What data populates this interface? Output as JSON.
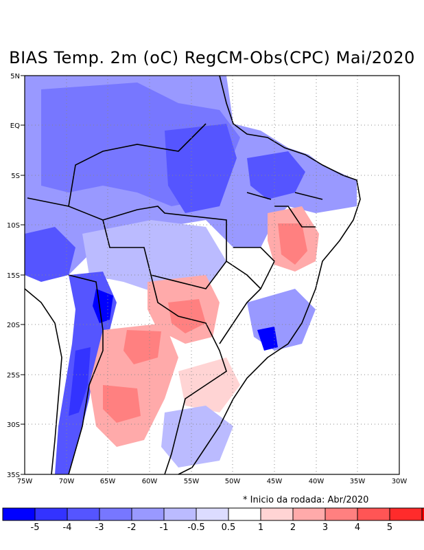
{
  "title": "BIAS Temp. 2m (oC) RegCM-Obs(CPC) Mai/2020",
  "note": "* Inicio da rodada: Abr/2020",
  "map": {
    "lon_min": -75,
    "lon_max": -30,
    "lat_min": -35,
    "lat_max": 5,
    "lat_labels": [
      "5N",
      "EQ",
      "5S",
      "10S",
      "15S",
      "20S",
      "25S",
      "30S",
      "35S"
    ],
    "lon_labels": [
      "75W",
      "70W",
      "65W",
      "60W",
      "55W",
      "50W",
      "45W",
      "40W",
      "35W",
      "30W"
    ],
    "grid": "dotted"
  },
  "colorbar": {
    "colors": [
      "#0000ff",
      "#3333ff",
      "#5555ff",
      "#7777ff",
      "#9999ff",
      "#bbbbff",
      "#dcdcff",
      "#ffffff",
      "#ffd4d4",
      "#ffaaaa",
      "#ff8080",
      "#ff5555",
      "#ff2b2b",
      "#ff0000"
    ],
    "labels": [
      "-5",
      "-4",
      "-3",
      "-2",
      "-1",
      "-0.5",
      "0.5",
      "1",
      "2",
      "3",
      "4",
      "5"
    ]
  }
}
